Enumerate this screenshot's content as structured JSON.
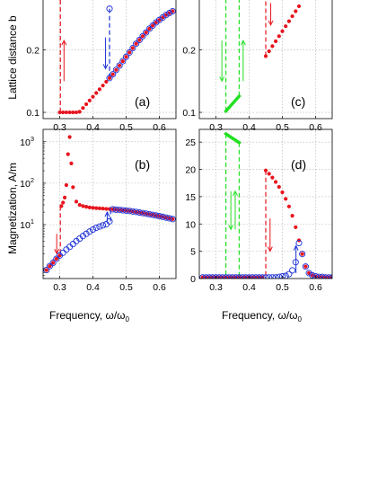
{
  "figure": {
    "ylabel_top": "Lattice distance b",
    "ylabel_bottom": "Magnetization, A/m",
    "xlabel": "Frequency, ω/ω",
    "xlabel_sub": "0"
  },
  "colors": {
    "red": "#e8141e",
    "blue": "#1a2fd6",
    "green": "#22e022",
    "grid": "#b0b0b0"
  },
  "chart_data": [
    {
      "id": "a",
      "type": "scatter",
      "panel_label": "(a)",
      "xlim": [
        0.25,
        0.65
      ],
      "ylim": [
        0.09,
        0.28
      ],
      "yscale": "linear",
      "xticks": [
        0.3,
        0.4,
        0.5,
        0.6
      ],
      "xtick_labels": [
        "0.3",
        "0.4",
        "0.5",
        "0.6"
      ],
      "yticks": [
        0.1,
        0.2
      ],
      "ytick_labels": [
        "0.1",
        "0.2"
      ],
      "grid": true,
      "series": [
        {
          "color": "red",
          "marker": "dot",
          "x": [
            0.3,
            0.31,
            0.32,
            0.33,
            0.34,
            0.35,
            0.36,
            0.37,
            0.38,
            0.39,
            0.4,
            0.41,
            0.42,
            0.43,
            0.44,
            0.45,
            0.46,
            0.47,
            0.48,
            0.49,
            0.5,
            0.51,
            0.52,
            0.53,
            0.54,
            0.55,
            0.56,
            0.57,
            0.58,
            0.59,
            0.6,
            0.61,
            0.62,
            0.63,
            0.64
          ],
          "y": [
            0.1,
            0.1,
            0.1,
            0.1,
            0.1,
            0.1,
            0.101,
            0.107,
            0.113,
            0.119,
            0.125,
            0.131,
            0.137,
            0.143,
            0.149,
            0.155,
            0.161,
            0.168,
            0.175,
            0.182,
            0.189,
            0.196,
            0.203,
            0.21,
            0.216,
            0.222,
            0.228,
            0.234,
            0.239,
            0.244,
            0.248,
            0.252,
            0.256,
            0.259,
            0.262
          ]
        },
        {
          "color": "blue",
          "marker": "circle",
          "x": [
            0.45,
            0.46,
            0.47,
            0.48,
            0.49,
            0.5,
            0.51,
            0.52,
            0.53,
            0.54,
            0.55,
            0.56,
            0.57,
            0.58,
            0.59,
            0.6,
            0.61,
            0.62,
            0.63,
            0.64
          ],
          "y": [
            0.155,
            0.161,
            0.168,
            0.175,
            0.182,
            0.189,
            0.196,
            0.203,
            0.21,
            0.216,
            0.222,
            0.228,
            0.234,
            0.239,
            0.244,
            0.248,
            0.252,
            0.256,
            0.259,
            0.262
          ]
        },
        {
          "color": "blue",
          "marker": "circle",
          "x": [
            0.45
          ],
          "y": [
            0.266
          ]
        }
      ],
      "lines": [
        {
          "color": "red",
          "x1": 0.302,
          "y1": 0.1,
          "x2": 0.302,
          "y2": 0.28
        },
        {
          "color": "blue",
          "x1": 0.45,
          "y1": 0.266,
          "x2": 0.45,
          "y2": 0.155
        }
      ],
      "arrows": [
        {
          "color": "red",
          "x": 0.313,
          "y_from": 0.15,
          "y_to": 0.215
        },
        {
          "color": "blue",
          "x": 0.438,
          "y_from": 0.22,
          "y_to": 0.17
        }
      ]
    },
    {
      "id": "c",
      "type": "scatter",
      "panel_label": "(c)",
      "xlim": [
        0.25,
        0.65
      ],
      "ylim": [
        0.09,
        0.28
      ],
      "yscale": "linear",
      "xticks": [
        0.3,
        0.4,
        0.5,
        0.6
      ],
      "xtick_labels": [
        "0.3",
        "0.4",
        "0.5",
        "0.6"
      ],
      "yticks": [
        0.1,
        0.2
      ],
      "ytick_labels": [
        "0.1",
        "0.2"
      ],
      "grid": true,
      "series": [
        {
          "color": "green",
          "marker": "diamond",
          "x": [
            0.33,
            0.335,
            0.34,
            0.345,
            0.35,
            0.355,
            0.36,
            0.365,
            0.37
          ],
          "y": [
            0.102,
            0.105,
            0.108,
            0.111,
            0.114,
            0.117,
            0.12,
            0.123,
            0.126
          ]
        },
        {
          "color": "red",
          "marker": "dot",
          "x": [
            0.45,
            0.46,
            0.47,
            0.48,
            0.49,
            0.5,
            0.51,
            0.52,
            0.53,
            0.54,
            0.55
          ],
          "y": [
            0.19,
            0.198,
            0.206,
            0.214,
            0.222,
            0.23,
            0.238,
            0.246,
            0.254,
            0.262,
            0.27
          ]
        }
      ],
      "lines": [
        {
          "color": "green",
          "x1": 0.33,
          "y1": 0.102,
          "x2": 0.33,
          "y2": 0.28
        },
        {
          "color": "green",
          "x1": 0.37,
          "y1": 0.126,
          "x2": 0.37,
          "y2": 0.28
        },
        {
          "color": "red",
          "x1": 0.45,
          "y1": 0.19,
          "x2": 0.45,
          "y2": 0.28
        }
      ],
      "arrows": [
        {
          "color": "green",
          "x": 0.318,
          "y_from": 0.215,
          "y_to": 0.15
        },
        {
          "color": "green",
          "x": 0.382,
          "y_from": 0.15,
          "y_to": 0.215
        },
        {
          "color": "red",
          "x": 0.465,
          "y_from": 0.275,
          "y_to": 0.24
        }
      ]
    },
    {
      "id": "b",
      "type": "scatter",
      "panel_label": "(b)",
      "xlim": [
        0.25,
        0.65
      ],
      "ylim": [
        0.5,
        1800
      ],
      "yscale": "log",
      "xticks": [
        0.3,
        0.4,
        0.5,
        0.6
      ],
      "xtick_labels": [
        "0.3",
        "0.4",
        "0.5",
        "0.6"
      ],
      "yticks": [
        10,
        100,
        1000
      ],
      "ytick_labels": [
        "10",
        "10",
        "10"
      ],
      "ytick_sup": [
        "1",
        "2",
        "3"
      ],
      "grid": true,
      "series": [
        {
          "color": "red",
          "marker": "dot",
          "x": [
            0.26,
            0.27,
            0.28,
            0.29,
            0.3,
            0.305,
            0.31,
            0.315,
            0.32,
            0.325,
            0.33,
            0.335,
            0.34,
            0.35,
            0.36,
            0.37,
            0.38,
            0.39,
            0.4,
            0.41,
            0.42,
            0.43,
            0.44,
            0.45,
            0.46,
            0.47,
            0.48,
            0.49,
            0.5,
            0.51,
            0.52,
            0.53,
            0.54,
            0.55,
            0.56,
            0.57,
            0.58,
            0.59,
            0.6,
            0.61,
            0.62,
            0.63,
            0.64
          ],
          "y": [
            0.8,
            1.0,
            1.2,
            1.5,
            1.8,
            28,
            34,
            45,
            90,
            500,
            1300,
            300,
            80,
            36,
            30,
            28,
            27,
            26,
            25.5,
            25,
            24.7,
            24.4,
            24,
            23.8,
            23.4,
            23,
            22.6,
            22.2,
            21.8,
            21.4,
            20.8,
            20.2,
            19.6,
            19,
            18.4,
            17.8,
            17.2,
            16.6,
            16,
            15.4,
            14.8,
            14.2,
            13.6
          ]
        },
        {
          "color": "blue",
          "marker": "circle",
          "x": [
            0.26,
            0.27,
            0.28,
            0.29,
            0.3,
            0.31,
            0.32,
            0.33,
            0.34,
            0.35,
            0.36,
            0.37,
            0.38,
            0.39,
            0.4,
            0.41,
            0.42,
            0.43,
            0.44,
            0.45,
            0.46,
            0.47,
            0.48,
            0.49,
            0.5,
            0.51,
            0.52,
            0.53,
            0.54,
            0.55,
            0.56,
            0.57,
            0.58,
            0.59,
            0.6,
            0.61,
            0.62,
            0.63,
            0.64
          ],
          "y": [
            0.8,
            1.0,
            1.2,
            1.5,
            1.8,
            2.1,
            2.5,
            2.9,
            3.4,
            4.0,
            4.6,
            5.3,
            6.0,
            6.8,
            7.6,
            8.4,
            9.0,
            9.6,
            10.2,
            12,
            23.4,
            23,
            22.6,
            22.2,
            21.8,
            21.4,
            20.8,
            20.2,
            19.6,
            19,
            18.4,
            17.8,
            17.2,
            16.6,
            16,
            15.4,
            14.8,
            14.2,
            13.6
          ]
        }
      ],
      "lines": [
        {
          "color": "red",
          "x1": 0.302,
          "y1": 28,
          "x2": 0.302,
          "y2": 1.8
        },
        {
          "color": "blue",
          "x1": 0.453,
          "y1": 12,
          "x2": 0.453,
          "y2": 23.8
        }
      ],
      "arrows": [
        {
          "color": "red",
          "x": 0.291,
          "y_from": 6,
          "y_to": 2.0
        },
        {
          "color": "blue",
          "x": 0.443,
          "y_from": 12,
          "y_to": 20
        }
      ]
    },
    {
      "id": "d",
      "type": "scatter",
      "panel_label": "(d)",
      "xlim": [
        0.25,
        0.65
      ],
      "ylim": [
        0,
        27
      ],
      "yscale": "linear",
      "xticks": [
        0.3,
        0.4,
        0.5,
        0.6
      ],
      "xtick_labels": [
        "0.3",
        "0.4",
        "0.5",
        "0.6"
      ],
      "yticks": [
        0,
        5,
        10,
        15,
        20,
        25
      ],
      "ytick_labels": [
        "0",
        "5",
        "10",
        "15",
        "20",
        "25"
      ],
      "grid": true,
      "series": [
        {
          "color": "red",
          "marker": "dot",
          "x": [
            0.26,
            0.27,
            0.28,
            0.29,
            0.3,
            0.31,
            0.32,
            0.33,
            0.34,
            0.35,
            0.36,
            0.37,
            0.38,
            0.39,
            0.4,
            0.41,
            0.42,
            0.43,
            0.44,
            0.45,
            0.46,
            0.47,
            0.48,
            0.49,
            0.5,
            0.51,
            0.52,
            0.53,
            0.54,
            0.55,
            0.56,
            0.57,
            0.58,
            0.59,
            0.6,
            0.61,
            0.62,
            0.63,
            0.64,
            0.65
          ],
          "y": [
            0.2,
            0.2,
            0.2,
            0.2,
            0.2,
            0.2,
            0.2,
            0.2,
            0.2,
            0.2,
            0.2,
            0.2,
            0.2,
            0.2,
            0.2,
            0.2,
            0.2,
            0.2,
            0.2,
            19.8,
            19.2,
            18.5,
            17.7,
            16.8,
            15.8,
            14.6,
            13.2,
            11.5,
            9.4,
            7.0,
            4.5,
            2.2,
            1.0,
            0.6,
            0.4,
            0.3,
            0.3,
            0.2,
            0.2,
            0.2
          ]
        },
        {
          "color": "blue",
          "marker": "circle",
          "x": [
            0.26,
            0.27,
            0.28,
            0.29,
            0.3,
            0.31,
            0.32,
            0.33,
            0.34,
            0.35,
            0.36,
            0.37,
            0.38,
            0.39,
            0.4,
            0.41,
            0.42,
            0.43,
            0.44,
            0.45,
            0.46,
            0.47,
            0.48,
            0.49,
            0.5,
            0.51,
            0.52,
            0.53,
            0.54,
            0.55,
            0.56,
            0.57,
            0.58,
            0.59,
            0.6,
            0.61,
            0.62,
            0.63,
            0.64,
            0.65
          ],
          "y": [
            0.2,
            0.2,
            0.2,
            0.2,
            0.2,
            0.2,
            0.2,
            0.2,
            0.2,
            0.2,
            0.2,
            0.2,
            0.2,
            0.2,
            0.2,
            0.2,
            0.2,
            0.2,
            0.2,
            0.2,
            0.2,
            0.2,
            0.2,
            0.3,
            0.4,
            0.5,
            0.8,
            1.5,
            3.0,
            6.5,
            4.5,
            2.2,
            1.0,
            0.6,
            0.4,
            0.3,
            0.3,
            0.2,
            0.2,
            0.2
          ]
        },
        {
          "color": "green",
          "marker": "diamond",
          "x": [
            0.33,
            0.335,
            0.34,
            0.345,
            0.35,
            0.355,
            0.36,
            0.365,
            0.37
          ],
          "y": [
            26.5,
            26.3,
            26.1,
            25.9,
            25.7,
            25.5,
            25.3,
            25.1,
            24.9
          ]
        }
      ],
      "lines": [
        {
          "color": "green",
          "x1": 0.33,
          "y1": 26.5,
          "x2": 0.33,
          "y2": 0.2
        },
        {
          "color": "green",
          "x1": 0.37,
          "y1": 24.9,
          "x2": 0.37,
          "y2": 0.2
        },
        {
          "color": "red",
          "x1": 0.45,
          "y1": 19.8,
          "x2": 0.45,
          "y2": 0.2
        }
      ],
      "arrows": [
        {
          "color": "green",
          "x": 0.345,
          "y_from": 16,
          "y_to": 9
        },
        {
          "color": "green",
          "x": 0.358,
          "y_from": 9,
          "y_to": 16
        },
        {
          "color": "red",
          "x": 0.463,
          "y_from": 11,
          "y_to": 5
        },
        {
          "color": "blue",
          "x": 0.541,
          "y_from": 1.0,
          "y_to": 6.0
        }
      ]
    }
  ]
}
